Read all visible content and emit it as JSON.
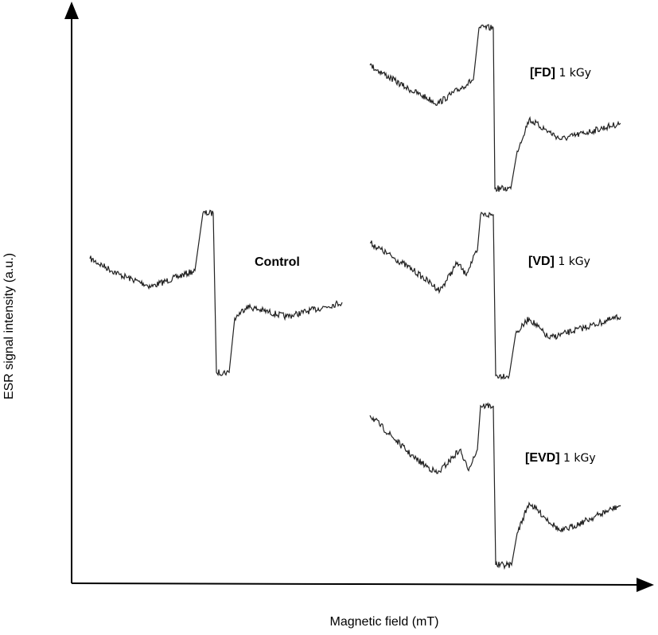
{
  "axes": {
    "x_label": "Magnetic field (mT)",
    "y_label": "ESR signal intensity (a.u.)"
  },
  "spectra": [
    {
      "tag": "Control"
    },
    {
      "tag": "[FD]",
      "dose": "1 kGy"
    },
    {
      "tag": "[VD]",
      "dose": "1 kGy"
    },
    {
      "tag": "[EVD]",
      "dose": "1 kGy"
    }
  ]
}
